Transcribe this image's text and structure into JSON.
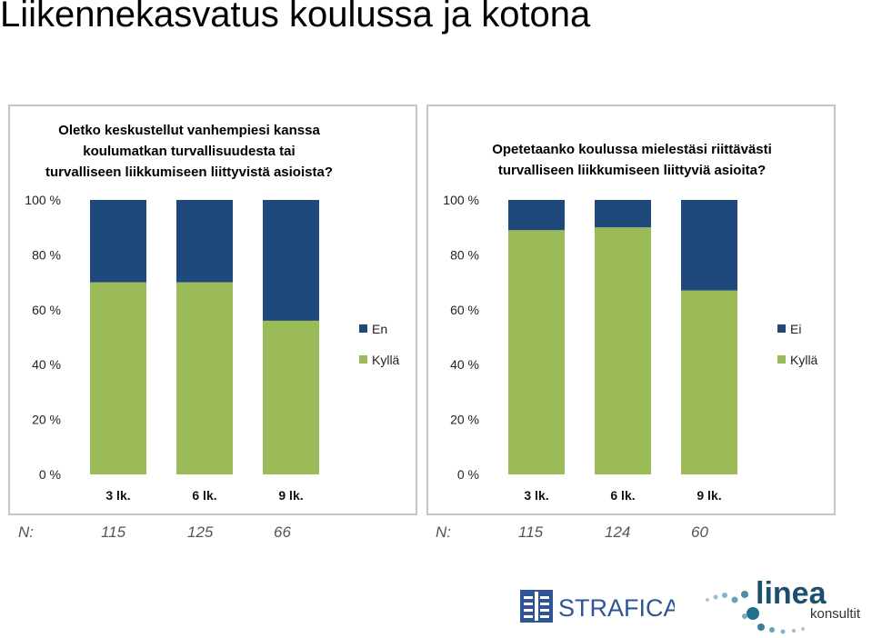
{
  "page": {
    "title": "Liikennekasvatus koulussa ja kotona"
  },
  "colors": {
    "top_series": "#1f497d",
    "bottom_series": "#9bbb59",
    "panel_border": "#c4c4c4"
  },
  "chart_data": [
    {
      "type": "bar",
      "stacked": true,
      "title_lines": [
        "Oletko keskustellut vanhempiesi kanssa",
        "koulumatkan turvallisuudesta tai",
        "turvalliseen liikkumiseen liittyvistä asioista?"
      ],
      "categories": [
        "3 lk.",
        "6 lk.",
        "9 lk."
      ],
      "y_ticks": [
        "0 %",
        "20 %",
        "40 %",
        "60 %",
        "80 %",
        "100 %"
      ],
      "ylim": [
        0,
        100
      ],
      "series": [
        {
          "name": "Kyllä",
          "values": [
            70,
            70,
            56
          ]
        },
        {
          "name": "En",
          "values": [
            30,
            30,
            44
          ]
        }
      ],
      "legend": {
        "position": "right",
        "entries": [
          "En",
          "Kyllä"
        ]
      },
      "n_label": "N:",
      "n_values": [
        "115",
        "125",
        "66"
      ]
    },
    {
      "type": "bar",
      "stacked": true,
      "title_lines": [
        "Opetetaanko koulussa mielestäsi riittävästi",
        "turvalliseen liikkumiseen liittyviä asioita?"
      ],
      "categories": [
        "3 lk.",
        "6 lk.",
        "9 lk."
      ],
      "y_ticks": [
        "0 %",
        "20 %",
        "40 %",
        "60 %",
        "80 %",
        "100 %"
      ],
      "ylim": [
        0,
        100
      ],
      "series": [
        {
          "name": "Kyllä",
          "values": [
            89,
            90,
            67
          ]
        },
        {
          "name": "Ei",
          "values": [
            11,
            10,
            33
          ]
        }
      ],
      "legend": {
        "position": "right",
        "entries": [
          "Ei",
          "Kyllä"
        ]
      },
      "n_label": "N:",
      "n_values": [
        "115",
        "124",
        "60"
      ]
    }
  ],
  "logos": [
    {
      "name": "strafica",
      "text": "STRAFICA"
    },
    {
      "name": "linea",
      "text": "linea",
      "subtext": "konsultit"
    }
  ]
}
